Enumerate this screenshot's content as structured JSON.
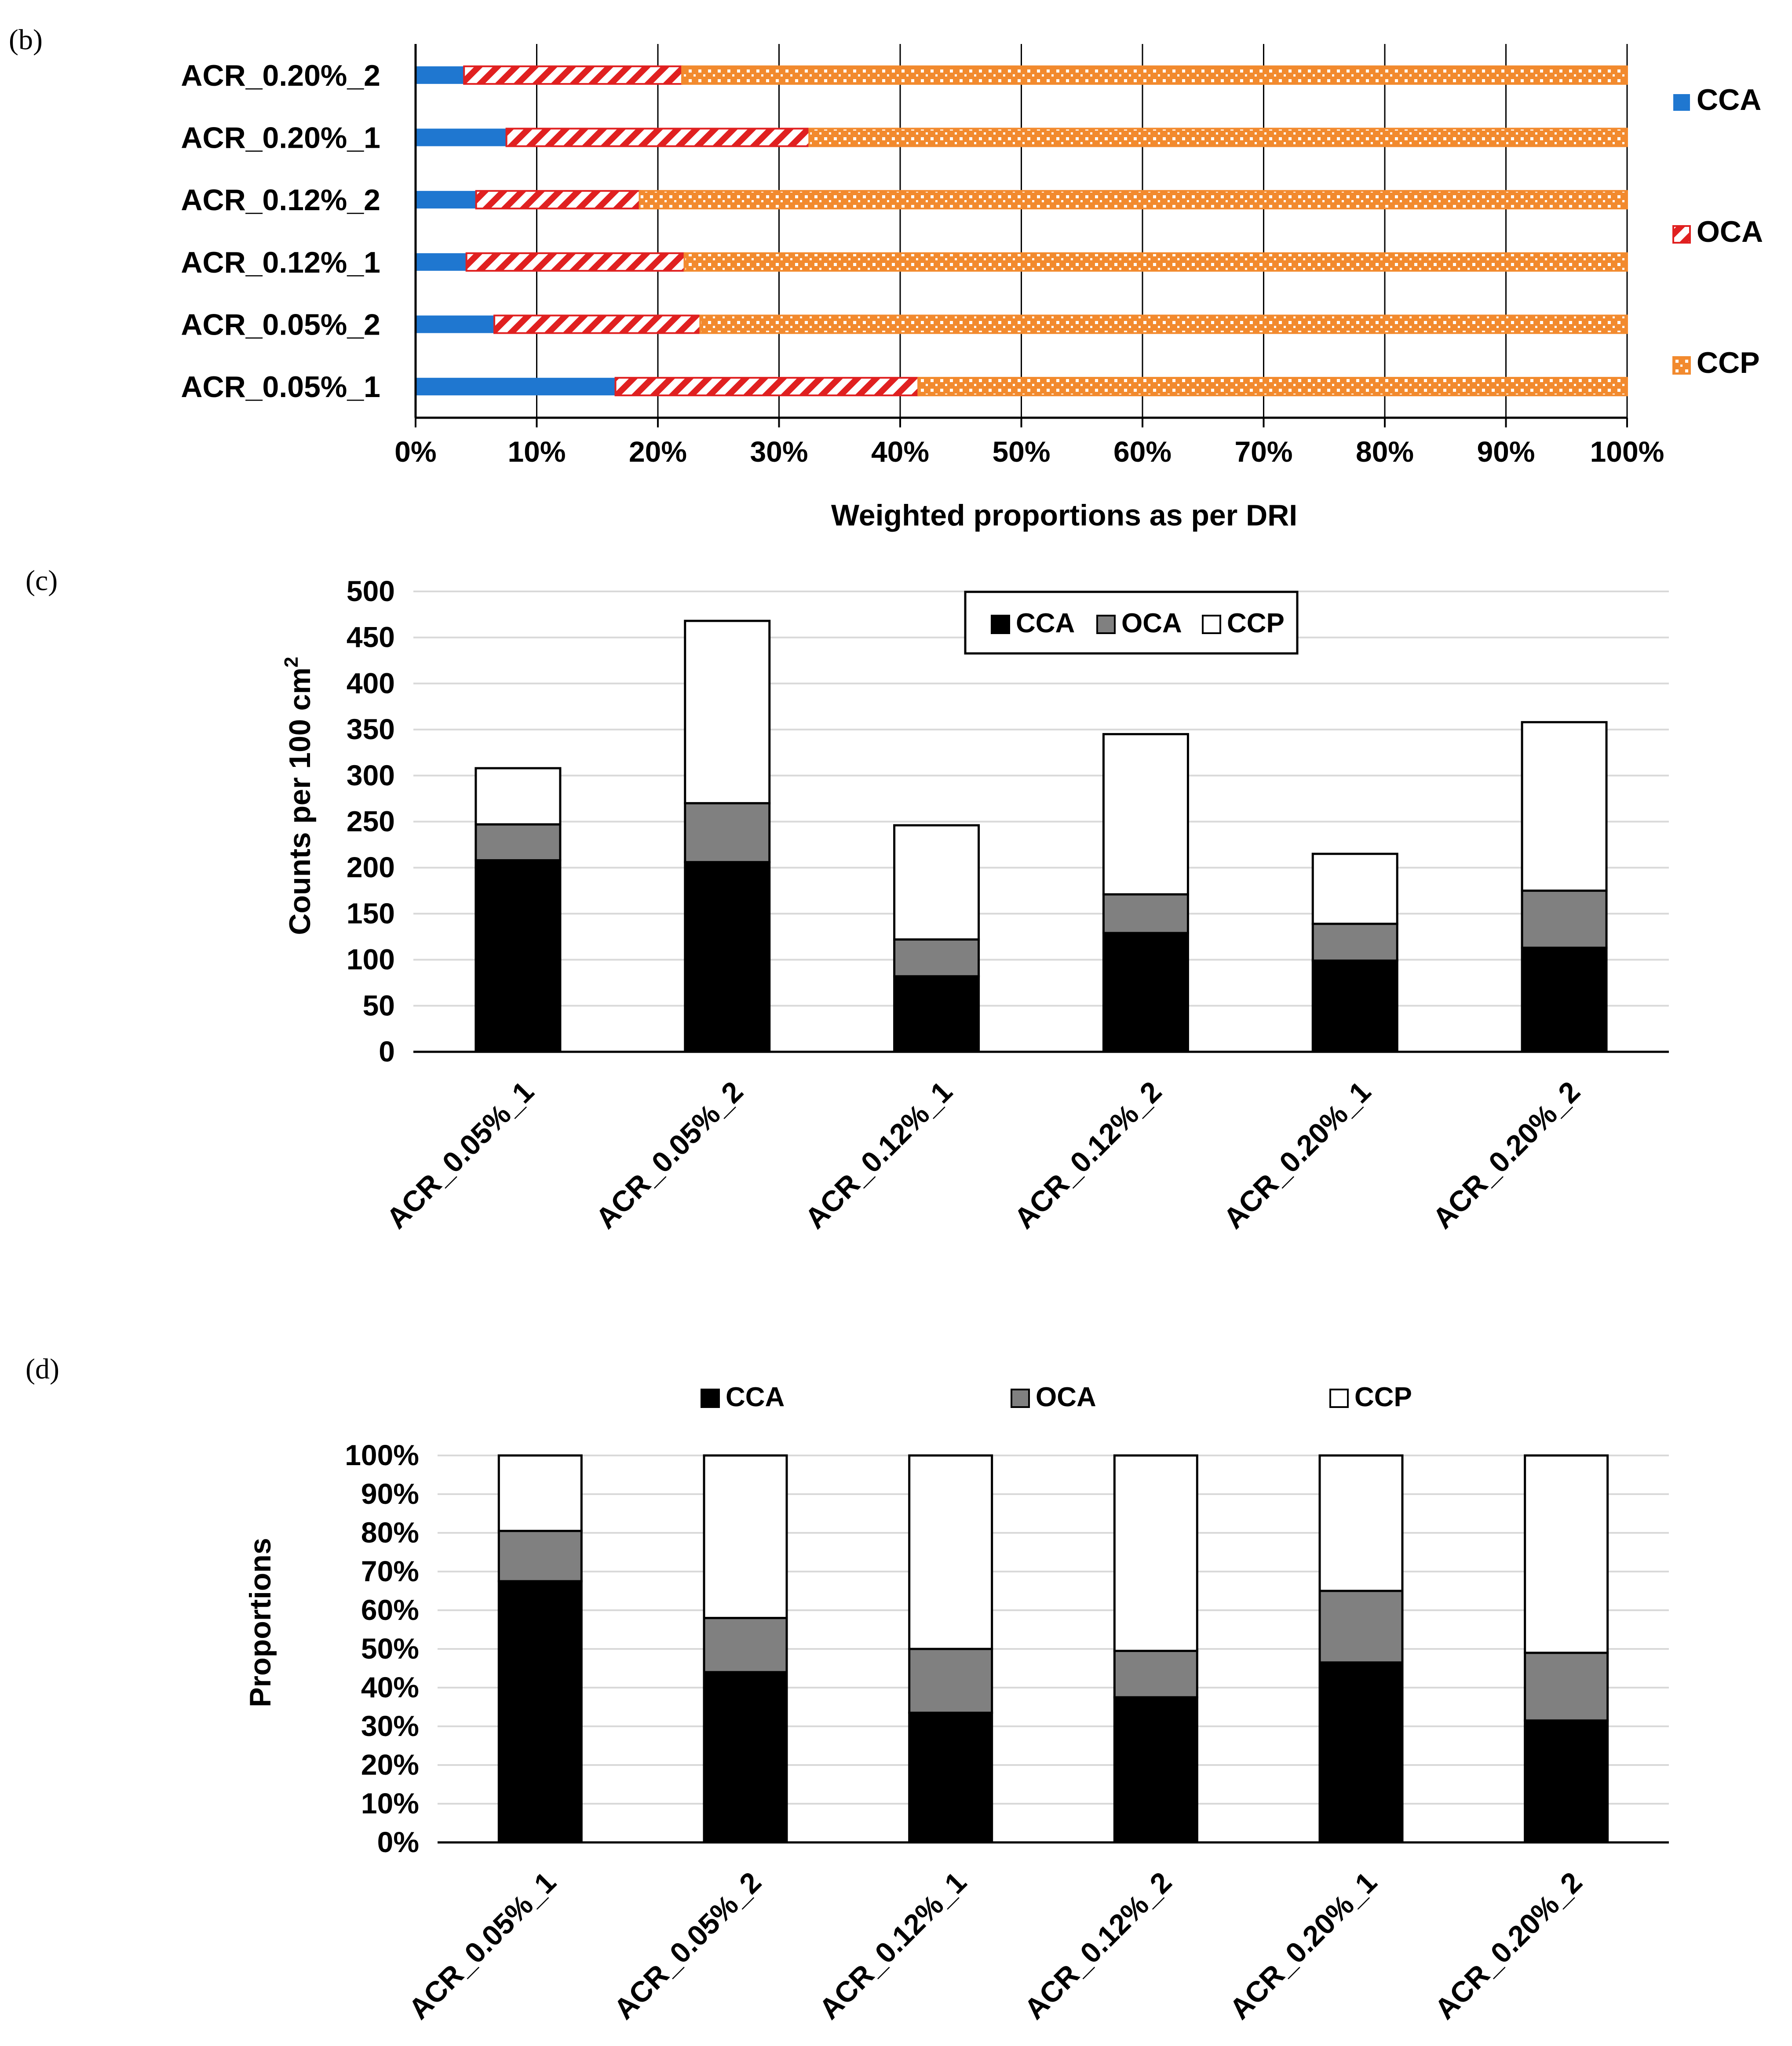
{
  "colors": {
    "cca_blue": "#1F77D0",
    "oca_red": "#E02020",
    "ccp_orange": "#F28A2E",
    "black": "#000000",
    "gray": "#808080",
    "white": "#ffffff",
    "grid": "#d9d9d9",
    "vgrid": "#000000"
  },
  "panel_labels": {
    "b": "(b)",
    "c": "(c)",
    "d": "(d)"
  },
  "chart_data": [
    {
      "id": "b",
      "type": "bar",
      "orientation": "horizontal",
      "stacked": true,
      "categories": [
        "ACR_0.20%_2",
        "ACR_0.20%_1",
        "ACR_0.12%_2",
        "ACR_0.12%_1",
        "ACR_0.05%_2",
        "ACR_0.05%_1"
      ],
      "series": [
        {
          "name": "CCA",
          "values": [
            4,
            7.5,
            5,
            4.2,
            6.5,
            16.5
          ]
        },
        {
          "name": "OCA",
          "values": [
            18,
            25,
            13.5,
            18,
            17,
            25
          ]
        },
        {
          "name": "CCP",
          "values": [
            78,
            67.5,
            81.5,
            77.8,
            76.5,
            58.5
          ]
        }
      ],
      "xlabel": "Weighted proportions as per DRI",
      "ylabel": "",
      "xlim": [
        0,
        100
      ],
      "ticks": [
        "0%",
        "10%",
        "20%",
        "30%",
        "40%",
        "50%",
        "60%",
        "70%",
        "80%",
        "90%",
        "100%"
      ],
      "legend": [
        "CCA",
        "OCA",
        "CCP"
      ],
      "legend_position": "right"
    },
    {
      "id": "c",
      "type": "bar",
      "stacked": true,
      "categories": [
        "ACR_0.05%_1",
        "ACR_0.05%_2",
        "ACR_0.12%_1",
        "ACR_0.12%_2",
        "ACR_0.20%_1",
        "ACR_0.20%_2"
      ],
      "series": [
        {
          "name": "CCA",
          "values": [
            208,
            206,
            82,
            129,
            99,
            113
          ]
        },
        {
          "name": "OCA",
          "values": [
            39,
            64,
            40,
            42,
            40,
            62
          ]
        },
        {
          "name": "CCP",
          "values": [
            61,
            198,
            124,
            174,
            76,
            183
          ]
        }
      ],
      "ylabel": "Counts per 100 cm",
      "ylabel_sup": "2",
      "xlabel": "",
      "ylim": [
        0,
        500
      ],
      "ticks": [
        "0",
        "50",
        "100",
        "150",
        "200",
        "250",
        "300",
        "350",
        "400",
        "450",
        "500"
      ],
      "legend": [
        "CCA",
        "OCA",
        "CCP"
      ],
      "legend_position": "top"
    },
    {
      "id": "d",
      "type": "bar",
      "stacked": true,
      "categories": [
        "ACR_0.05%_1",
        "ACR_0.05%_2",
        "ACR_0.12%_1",
        "ACR_0.12%_2",
        "ACR_0.20%_1",
        "ACR_0.20%_2"
      ],
      "series": [
        {
          "name": "CCA",
          "values": [
            67.5,
            44,
            33.5,
            37.5,
            46.5,
            31.5
          ]
        },
        {
          "name": "OCA",
          "values": [
            13,
            14,
            16.5,
            12,
            18.5,
            17.5
          ]
        },
        {
          "name": "CCP",
          "values": [
            19.5,
            42,
            50,
            50.5,
            35,
            51
          ]
        }
      ],
      "ylabel": "Proportions",
      "xlabel": "",
      "ylim": [
        0,
        100
      ],
      "ticks": [
        "0%",
        "10%",
        "20%",
        "30%",
        "40%",
        "50%",
        "60%",
        "70%",
        "80%",
        "90%",
        "100%"
      ],
      "legend": [
        "CCA",
        "OCA",
        "CCP"
      ],
      "legend_position": "top"
    }
  ]
}
